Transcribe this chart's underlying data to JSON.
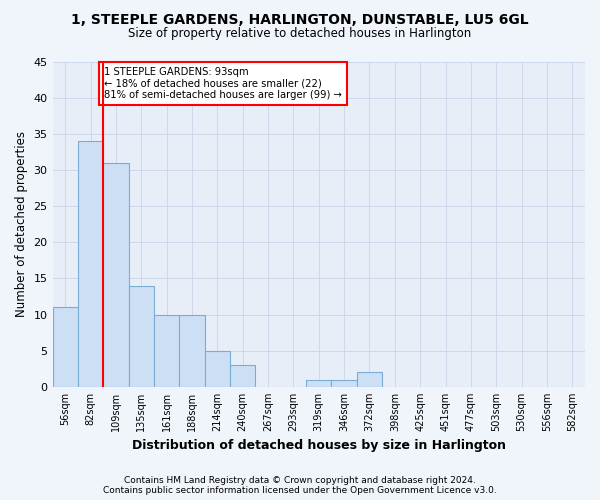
{
  "title1": "1, STEEPLE GARDENS, HARLINGTON, DUNSTABLE, LU5 6GL",
  "title2": "Size of property relative to detached houses in Harlington",
  "xlabel": "Distribution of detached houses by size in Harlington",
  "ylabel": "Number of detached properties",
  "bar_color": "#ccdff5",
  "bar_edge_color": "#7aadd4",
  "categories": [
    "56sqm",
    "82sqm",
    "109sqm",
    "135sqm",
    "161sqm",
    "188sqm",
    "214sqm",
    "240sqm",
    "267sqm",
    "293sqm",
    "319sqm",
    "346sqm",
    "372sqm",
    "398sqm",
    "425sqm",
    "451sqm",
    "477sqm",
    "503sqm",
    "530sqm",
    "556sqm",
    "582sqm"
  ],
  "values": [
    11,
    34,
    31,
    14,
    10,
    10,
    5,
    3,
    0,
    0,
    1,
    1,
    2,
    0,
    0,
    0,
    0,
    0,
    0,
    0,
    0
  ],
  "ylim": [
    0,
    45
  ],
  "yticks": [
    0,
    5,
    10,
    15,
    20,
    25,
    30,
    35,
    40,
    45
  ],
  "annotation_text": "1 STEEPLE GARDENS: 93sqm\n← 18% of detached houses are smaller (22)\n81% of semi-detached houses are larger (99) →",
  "footer1": "Contains HM Land Registry data © Crown copyright and database right 2024.",
  "footer2": "Contains public sector information licensed under the Open Government Licence v3.0.",
  "bg_color": "#f0f4fb",
  "plot_bg_color": "#e8eef8",
  "red_line_x": 1.5
}
